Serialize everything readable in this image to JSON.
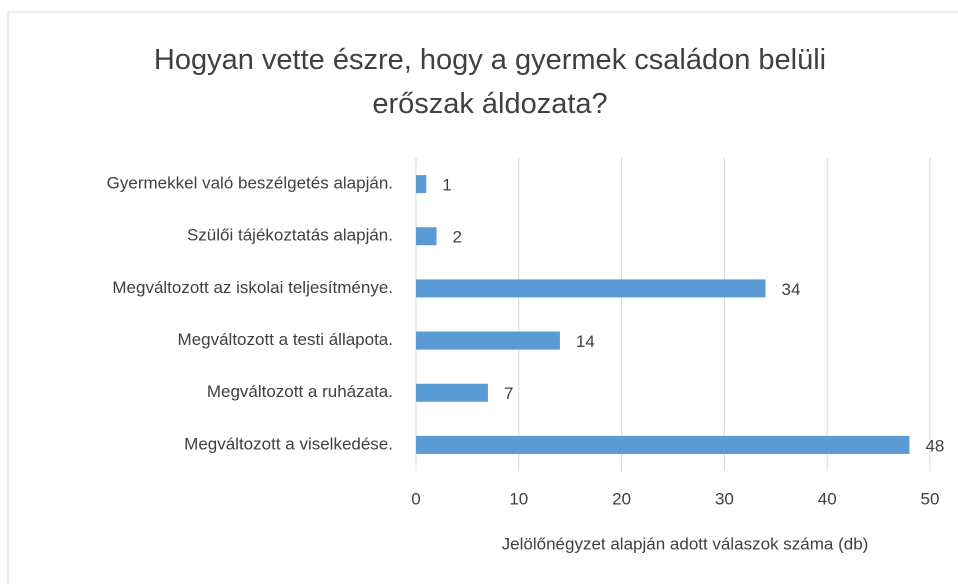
{
  "chart_data": {
    "type": "barh",
    "title": "Hogyan vette észre, hogy a gyermek családon belüli erőszak áldozata?",
    "categories": [
      "Gyermekkel való beszélgetés alapján.",
      "Szülői tájékoztatás alapján.",
      "Megváltozott az iskolai teljesítménye.",
      "Megváltozott a testi állapota.",
      "Megváltozott a ruházata.",
      "Megváltozott a viselkedése."
    ],
    "values": [
      1,
      2,
      34,
      14,
      7,
      48
    ],
    "color": "#5b9bd5",
    "xlabel": "Jelölőnégyzet alapján adott válaszok száma (db)",
    "xlim": [
      0,
      50
    ],
    "xticks": [
      0,
      10,
      20,
      30,
      40,
      50
    ],
    "grid": true
  }
}
